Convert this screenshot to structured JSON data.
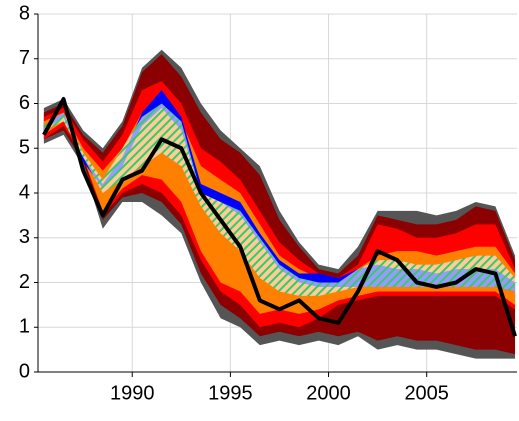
{
  "chart_data": {
    "type": "fan",
    "x": [
      1985.5,
      1986.5,
      1987.5,
      1988.5,
      1989.5,
      1990.5,
      1991.5,
      1992.5,
      1993.5,
      1994.5,
      1995.5,
      1996.5,
      1997.5,
      1998.5,
      1999.5,
      2000.5,
      2001.5,
      2002.5,
      2003.5,
      2004.5,
      2005.5,
      2006.5,
      2007.5,
      2008.5,
      2009.5
    ],
    "xlim": [
      1985.2,
      2009.6
    ],
    "xticks": [
      1990,
      1995,
      2000,
      2005
    ],
    "ylim": [
      0,
      8
    ],
    "yticks": [
      0,
      1,
      2,
      3,
      4,
      5,
      6,
      7,
      8
    ],
    "grid": true,
    "series": [
      {
        "color": "#555555",
        "high": [
          5.9,
          6.1,
          5.4,
          5.0,
          5.6,
          6.8,
          7.2,
          6.8,
          6.0,
          5.4,
          5.0,
          4.6,
          3.6,
          2.9,
          2.4,
          2.3,
          2.8,
          3.6,
          3.6,
          3.6,
          3.5,
          3.6,
          3.8,
          3.7,
          2.6
        ],
        "low": [
          5.1,
          5.3,
          4.6,
          3.2,
          3.8,
          3.8,
          3.5,
          3.1,
          2.0,
          1.2,
          1.0,
          0.6,
          0.7,
          0.6,
          0.7,
          0.6,
          0.8,
          0.5,
          0.6,
          0.5,
          0.5,
          0.4,
          0.3,
          0.3,
          0.3
        ]
      },
      {
        "color": "#8b0000",
        "high": [
          5.8,
          6.0,
          5.3,
          4.9,
          5.5,
          6.7,
          7.1,
          6.6,
          5.8,
          5.2,
          4.9,
          4.4,
          3.4,
          2.8,
          2.3,
          2.2,
          2.6,
          3.5,
          3.4,
          3.3,
          3.3,
          3.4,
          3.7,
          3.6,
          2.5
        ],
        "low": [
          5.2,
          5.4,
          4.7,
          3.4,
          3.9,
          4.0,
          3.8,
          3.3,
          2.2,
          1.5,
          1.2,
          0.8,
          0.9,
          0.8,
          0.9,
          0.8,
          0.9,
          0.7,
          0.8,
          0.7,
          0.7,
          0.6,
          0.5,
          0.5,
          0.4
        ]
      },
      {
        "color": "#ff0000",
        "high": [
          5.7,
          5.9,
          5.2,
          4.7,
          5.3,
          6.3,
          6.5,
          6.0,
          5.0,
          4.7,
          4.3,
          3.6,
          2.9,
          2.5,
          2.2,
          2.1,
          2.4,
          3.3,
          3.2,
          3.0,
          3.0,
          3.1,
          3.3,
          3.3,
          2.3
        ],
        "low": [
          5.2,
          5.5,
          4.8,
          3.5,
          4.0,
          4.2,
          4.0,
          3.5,
          2.5,
          1.8,
          1.5,
          1.0,
          1.1,
          1.0,
          1.2,
          1.5,
          1.6,
          1.7,
          1.7,
          1.7,
          1.7,
          1.7,
          1.7,
          1.7,
          1.4
        ]
      },
      {
        "color": "#ff8000",
        "high": [
          5.6,
          5.8,
          5.0,
          4.5,
          5.0,
          5.8,
          5.9,
          5.6,
          4.6,
          4.3,
          4.0,
          3.3,
          2.6,
          2.3,
          2.1,
          2.0,
          2.3,
          2.6,
          2.7,
          2.7,
          2.6,
          2.7,
          2.8,
          2.8,
          2.2
        ],
        "low": [
          5.3,
          5.6,
          4.8,
          3.6,
          4.1,
          4.4,
          4.3,
          3.8,
          2.7,
          2.0,
          1.8,
          1.3,
          1.4,
          1.3,
          1.4,
          1.6,
          1.7,
          1.8,
          1.8,
          1.8,
          1.8,
          1.8,
          1.8,
          1.8,
          1.5
        ]
      },
      {
        "color": "#0000ff",
        "high": [
          5.5,
          5.8,
          4.8,
          4.2,
          4.8,
          5.8,
          6.3,
          5.7,
          4.2,
          4.0,
          3.8,
          3.1,
          2.5,
          2.2,
          2.2,
          2.1,
          2.3,
          2.4,
          2.3,
          2.3,
          2.2,
          2.3,
          2.3,
          2.3,
          2.0
        ],
        "low": [
          5.4,
          5.7,
          4.7,
          4.1,
          4.6,
          5.5,
          5.9,
          5.4,
          4.0,
          3.8,
          3.5,
          2.9,
          2.3,
          2.0,
          1.9,
          1.9,
          1.9,
          1.9,
          1.9,
          1.9,
          1.9,
          1.9,
          1.9,
          1.9,
          1.8
        ]
      },
      {
        "color": "#33cc66",
        "hatch": true,
        "high": [
          5.5,
          5.8,
          4.9,
          4.3,
          5.0,
          5.7,
          6.0,
          5.6,
          4.0,
          3.8,
          3.6,
          3.0,
          2.4,
          2.1,
          2.0,
          2.0,
          2.3,
          2.5,
          2.5,
          2.4,
          2.4,
          2.5,
          2.6,
          2.6,
          2.1
        ],
        "low": [
          5.4,
          5.6,
          4.8,
          4.0,
          4.3,
          4.6,
          4.9,
          4.6,
          3.7,
          3.1,
          2.7,
          2.1,
          1.8,
          1.7,
          1.7,
          1.8,
          1.9,
          1.9,
          1.9,
          1.9,
          1.9,
          1.9,
          1.9,
          1.9,
          1.8
        ]
      }
    ],
    "line": {
      "color": "#000000",
      "values": [
        5.3,
        6.1,
        4.5,
        3.5,
        4.3,
        4.5,
        5.2,
        5.0,
        4.0,
        3.4,
        2.8,
        1.6,
        1.4,
        1.6,
        1.2,
        1.1,
        1.8,
        2.7,
        2.5,
        2.0,
        1.9,
        2.0,
        2.3,
        2.2,
        0.8
      ]
    }
  }
}
